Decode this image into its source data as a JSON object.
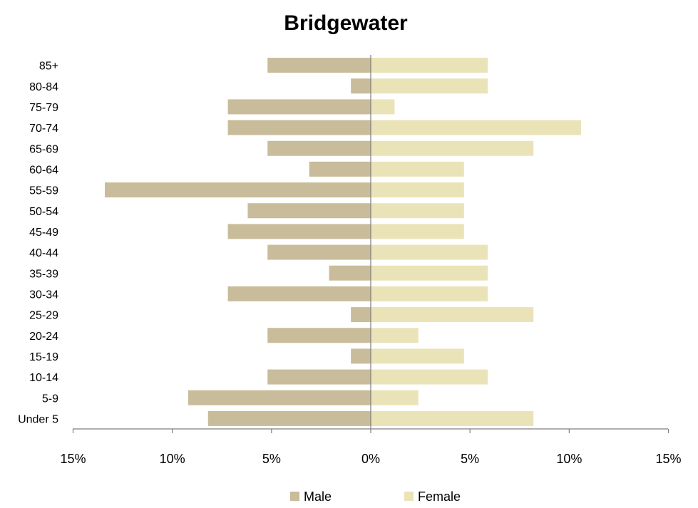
{
  "chart_data": {
    "type": "bar",
    "orientation": "horizontal",
    "title": "Bridgewater",
    "categories": [
      "Under 5",
      "5-9",
      "10-14",
      "15-19",
      "20-24",
      "25-29",
      "30-34",
      "35-39",
      "40-44",
      "45-49",
      "50-54",
      "55-59",
      "60-64",
      "65-69",
      "70-74",
      "75-79",
      "80-84",
      "85+"
    ],
    "series": [
      {
        "name": "Male",
        "color": "#c8bc9a",
        "values": [
          8.2,
          9.2,
          5.2,
          1.0,
          5.2,
          1.0,
          7.2,
          2.1,
          5.2,
          7.2,
          6.2,
          13.4,
          3.1,
          5.2,
          7.2,
          7.2,
          1.0,
          5.2
        ]
      },
      {
        "name": "Female",
        "color": "#ebe3b8",
        "values": [
          8.2,
          2.4,
          5.9,
          4.7,
          2.4,
          8.2,
          5.9,
          5.9,
          5.9,
          4.7,
          4.7,
          4.7,
          4.7,
          8.2,
          10.6,
          1.2,
          5.9,
          5.9
        ]
      }
    ],
    "x_ticks": [
      "15%",
      "10%",
      "5%",
      "0%",
      "5%",
      "10%",
      "15%"
    ],
    "xlim": [
      -15,
      15
    ],
    "grid": false,
    "legend_position": "bottom"
  }
}
